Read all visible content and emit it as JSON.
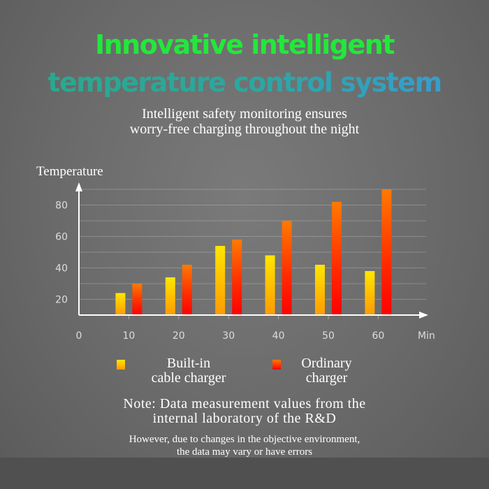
{
  "title_line1": "Innovative intelligent",
  "title_line2": "temperature control system",
  "subtitle_line1": "Intelligent safety monitoring ensures",
  "subtitle_line2": "worry-free charging throughout the night",
  "chart_data": {
    "type": "bar",
    "ylabel": "Temperature",
    "xlabel": "Min",
    "categories": [
      "10",
      "20",
      "30",
      "40",
      "50",
      "60"
    ],
    "x_origin_label": "0",
    "yticks": [
      "20",
      "40",
      "60",
      "80"
    ],
    "ylim": [
      10,
      90
    ],
    "grid": true,
    "legend_position": "bottom",
    "series": [
      {
        "name": "Built-in cable charger",
        "legend_line1": "Built-in",
        "legend_line2": "cable charger",
        "colors": [
          "#ffe600",
          "#ff9a00"
        ],
        "values": [
          24,
          34,
          54,
          48,
          42,
          38
        ]
      },
      {
        "name": "Ordinary charger",
        "legend_line1": "Ordinary",
        "legend_line2": "charger",
        "colors": [
          "#ff7a00",
          "#ff0000"
        ],
        "values": [
          30,
          42,
          58,
          70,
          82,
          90
        ]
      }
    ]
  },
  "note_line1": "Note: Data measurement values from the",
  "note_line2": "internal laboratory of the R&D",
  "disclaimer_line1": "However, due to changes in the objective environment,",
  "disclaimer_line2": "the data may vary or have errors"
}
